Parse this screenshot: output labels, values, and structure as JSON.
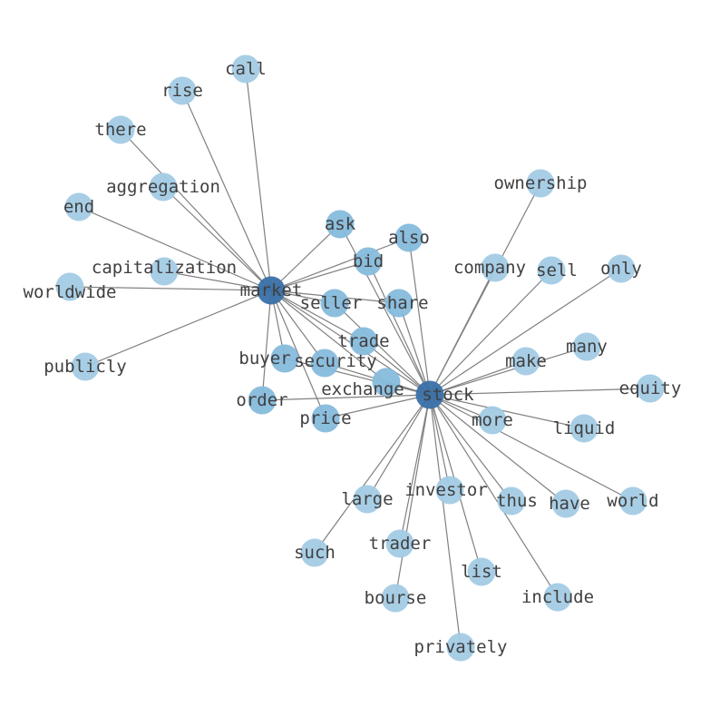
{
  "colors": {
    "edge": "#808080",
    "leaf_node": "#a3cbe5",
    "shared_node": "#86bbdc",
    "hub_node": "#3a70a8",
    "label": "#404040"
  },
  "hubs": [
    "market",
    "stock"
  ],
  "nodes": [
    "market",
    "stock",
    "call",
    "rise",
    "there",
    "aggregation",
    "end",
    "capitalization",
    "worldwide",
    "publicly",
    "ask",
    "also",
    "bid",
    "seller",
    "share",
    "trade",
    "buyer",
    "security",
    "exchange",
    "order",
    "price",
    "ownership",
    "company",
    "sell",
    "only",
    "many",
    "make",
    "equity",
    "more",
    "liquid",
    "world",
    "have",
    "thus",
    "investor",
    "large",
    "such",
    "trader",
    "list",
    "bourse",
    "include",
    "privately"
  ],
  "edges": [
    [
      "market",
      "stock"
    ],
    [
      "market",
      "call"
    ],
    [
      "market",
      "rise"
    ],
    [
      "market",
      "there"
    ],
    [
      "market",
      "aggregation"
    ],
    [
      "market",
      "end"
    ],
    [
      "market",
      "capitalization"
    ],
    [
      "market",
      "worldwide"
    ],
    [
      "market",
      "publicly"
    ],
    [
      "market",
      "ask"
    ],
    [
      "market",
      "also"
    ],
    [
      "market",
      "bid"
    ],
    [
      "market",
      "seller"
    ],
    [
      "market",
      "share"
    ],
    [
      "market",
      "trade"
    ],
    [
      "market",
      "buyer"
    ],
    [
      "market",
      "security"
    ],
    [
      "market",
      "exchange"
    ],
    [
      "market",
      "order"
    ],
    [
      "market",
      "price"
    ],
    [
      "stock",
      "ask"
    ],
    [
      "stock",
      "also"
    ],
    [
      "stock",
      "bid"
    ],
    [
      "stock",
      "seller"
    ],
    [
      "stock",
      "share"
    ],
    [
      "stock",
      "trade"
    ],
    [
      "stock",
      "buyer"
    ],
    [
      "stock",
      "security"
    ],
    [
      "stock",
      "exchange"
    ],
    [
      "stock",
      "order"
    ],
    [
      "stock",
      "price"
    ],
    [
      "stock",
      "ownership"
    ],
    [
      "stock",
      "company"
    ],
    [
      "stock",
      "sell"
    ],
    [
      "stock",
      "only"
    ],
    [
      "stock",
      "many"
    ],
    [
      "stock",
      "make"
    ],
    [
      "stock",
      "equity"
    ],
    [
      "stock",
      "more"
    ],
    [
      "stock",
      "liquid"
    ],
    [
      "stock",
      "world"
    ],
    [
      "stock",
      "have"
    ],
    [
      "stock",
      "thus"
    ],
    [
      "stock",
      "investor"
    ],
    [
      "stock",
      "large"
    ],
    [
      "stock",
      "such"
    ],
    [
      "stock",
      "trader"
    ],
    [
      "stock",
      "list"
    ],
    [
      "stock",
      "bourse"
    ],
    [
      "stock",
      "include"
    ],
    [
      "stock",
      "privately"
    ]
  ]
}
